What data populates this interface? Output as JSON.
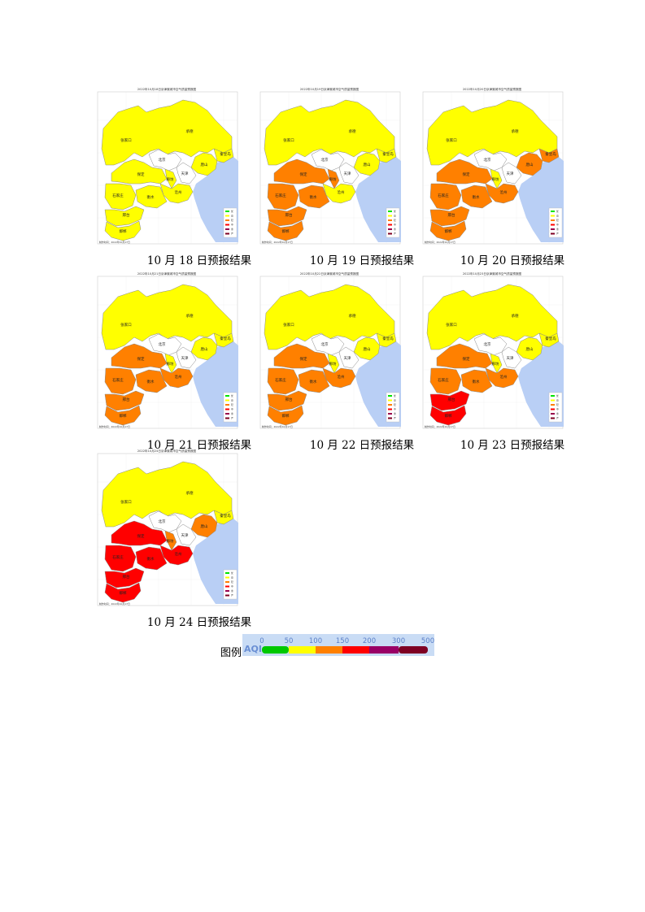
{
  "panels": [
    {
      "title": "2022年10月18日京津冀城市空气质量预报图",
      "caption": "10 月 18 日预报结果",
      "colors": {
        "north": "#ffff00",
        "bj": "#ffffff",
        "tj": "#ffffff",
        "ts": "#ffff00",
        "qhd": "#ffff00",
        "lf": "#ffff00",
        "bd": "#ffff00",
        "sjz": "#ffff00",
        "cz": "#ffff00",
        "hs": "#ffff00",
        "xt": "#ffff00",
        "hd": "#ffff00"
      }
    },
    {
      "title": "2022年10月19日京津冀城市空气质量预报图",
      "caption": "10 月 19 日预报结果",
      "colors": {
        "north": "#ffff00",
        "bj": "#ffffff",
        "tj": "#ffffff",
        "ts": "#ffff00",
        "qhd": "#ffff00",
        "lf": "#ff8000",
        "bd": "#ff8000",
        "sjz": "#ff8000",
        "cz": "#ffff00",
        "hs": "#ff8000",
        "xt": "#ff8000",
        "hd": "#ff8000"
      }
    },
    {
      "title": "2022年10月20日京津冀城市空气质量预报图",
      "caption": "10 月 20 日预报结果",
      "colors": {
        "north": "#ffff00",
        "bj": "#ffffff",
        "tj": "#ffffff",
        "ts": "#ff8000",
        "qhd": "#ff8000",
        "lf": "#ffff00",
        "bd": "#ff8000",
        "sjz": "#ff8000",
        "cz": "#ff8000",
        "hs": "#ff8000",
        "xt": "#ff8000",
        "hd": "#ff8000"
      }
    },
    {
      "title": "2022年10月21日京津冀城市空气质量预报图",
      "caption": "10 月 21 日预报结果",
      "colors": {
        "north": "#ffff00",
        "bj": "#ffffff",
        "tj": "#ffffff",
        "ts": "#ffff00",
        "qhd": "#ffff00",
        "lf": "#ffff00",
        "bd": "#ff8000",
        "sjz": "#ff8000",
        "cz": "#ff8000",
        "hs": "#ff8000",
        "xt": "#ff8000",
        "hd": "#ff8000"
      }
    },
    {
      "title": "2022年10月22日京津冀城市空气质量预报图",
      "caption": "10 月 22 日预报结果",
      "colors": {
        "north": "#ffff00",
        "bj": "#ffffff",
        "tj": "#ffffff",
        "ts": "#ffff00",
        "qhd": "#ffff00",
        "lf": "#ffff00",
        "bd": "#ff8000",
        "sjz": "#ff8000",
        "cz": "#ff8000",
        "hs": "#ff8000",
        "xt": "#ff8000",
        "hd": "#ff8000"
      }
    },
    {
      "title": "2022年10月23日京津冀城市空气质量预报图",
      "caption": "10 月 23 日预报结果",
      "colors": {
        "north": "#ffff00",
        "bj": "#ffffff",
        "tj": "#ffffff",
        "ts": "#ffff00",
        "qhd": "#ffff00",
        "lf": "#ffff00",
        "bd": "#ff8000",
        "sjz": "#ff8000",
        "cz": "#ff8000",
        "hs": "#ff8000",
        "xt": "#ff0000",
        "hd": "#ff0000"
      }
    },
    {
      "title": "2022年10月24日京津冀城市空气质量预报图",
      "caption": "10 月 24 日预报结果",
      "colors": {
        "north": "#ffff00",
        "bj": "#ffffff",
        "tj": "#ffffff",
        "ts": "#ff8000",
        "qhd": "#ffff00",
        "lf": "#ff8000",
        "bd": "#ff0000",
        "sjz": "#ff0000",
        "cz": "#ff0000",
        "hs": "#ff0000",
        "xt": "#ff0000",
        "hd": "#ff0000"
      }
    }
  ],
  "city_labels": {
    "zjk": "张家口",
    "cd": "承德",
    "bj": "北京",
    "tj": "天津",
    "ts": "唐山",
    "qhd": "秦皇岛",
    "bd": "保定",
    "lf": "廊坊",
    "sjz": "石家庄",
    "cz": "沧州",
    "hs": "衡水",
    "xt": "邢台",
    "hd": "邯郸"
  },
  "map_legend": [
    "优",
    "良",
    "轻",
    "中",
    "重",
    "严"
  ],
  "map_footer": "制作时间：2022年10月17日",
  "sea_color": "#b9cff5",
  "aqi_legend": {
    "label": "图例",
    "title": "AQI",
    "ticks": [
      "0",
      "50",
      "100",
      "150",
      "200",
      "300",
      "500"
    ],
    "colors": [
      "#00c800",
      "#ffff00",
      "#ff8000",
      "#ff0000",
      "#990066",
      "#7e0023"
    ]
  }
}
